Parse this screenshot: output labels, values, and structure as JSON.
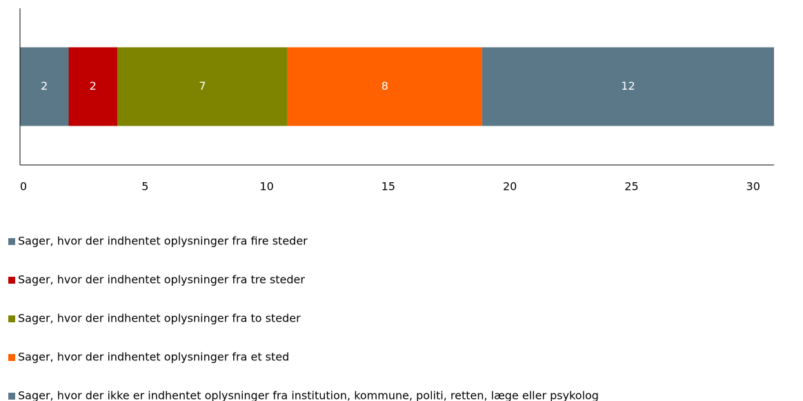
{
  "chart_data": {
    "type": "stacked_bar_horizontal",
    "categories": [
      null
    ],
    "series": [
      {
        "name": "Sager, hvor der indhentet oplysninger fra fire steder",
        "color": "#5b7889",
        "values": [
          2
        ]
      },
      {
        "name": "Sager, hvor der indhentet oplysninger fra tre steder",
        "color": "#c00000",
        "values": [
          2
        ]
      },
      {
        "name": "Sager, hvor der indhentet oplysninger fra to steder",
        "color": "#7f8400",
        "values": [
          7
        ]
      },
      {
        "name": "Sager, hvor der indhentet oplysninger fra et sted",
        "color": "#ff6000",
        "values": [
          8
        ]
      },
      {
        "name": "Sager, hvor der ikke er indhentet oplysninger fra institution, kommune, politi, retten, læge eller psykolog",
        "color": "#5b7889",
        "values": [
          12
        ]
      }
    ],
    "xlim": [
      0,
      31
    ],
    "xticks": [
      0,
      5,
      10,
      15,
      20,
      25,
      30
    ],
    "grid": false,
    "legend": "bottom"
  }
}
